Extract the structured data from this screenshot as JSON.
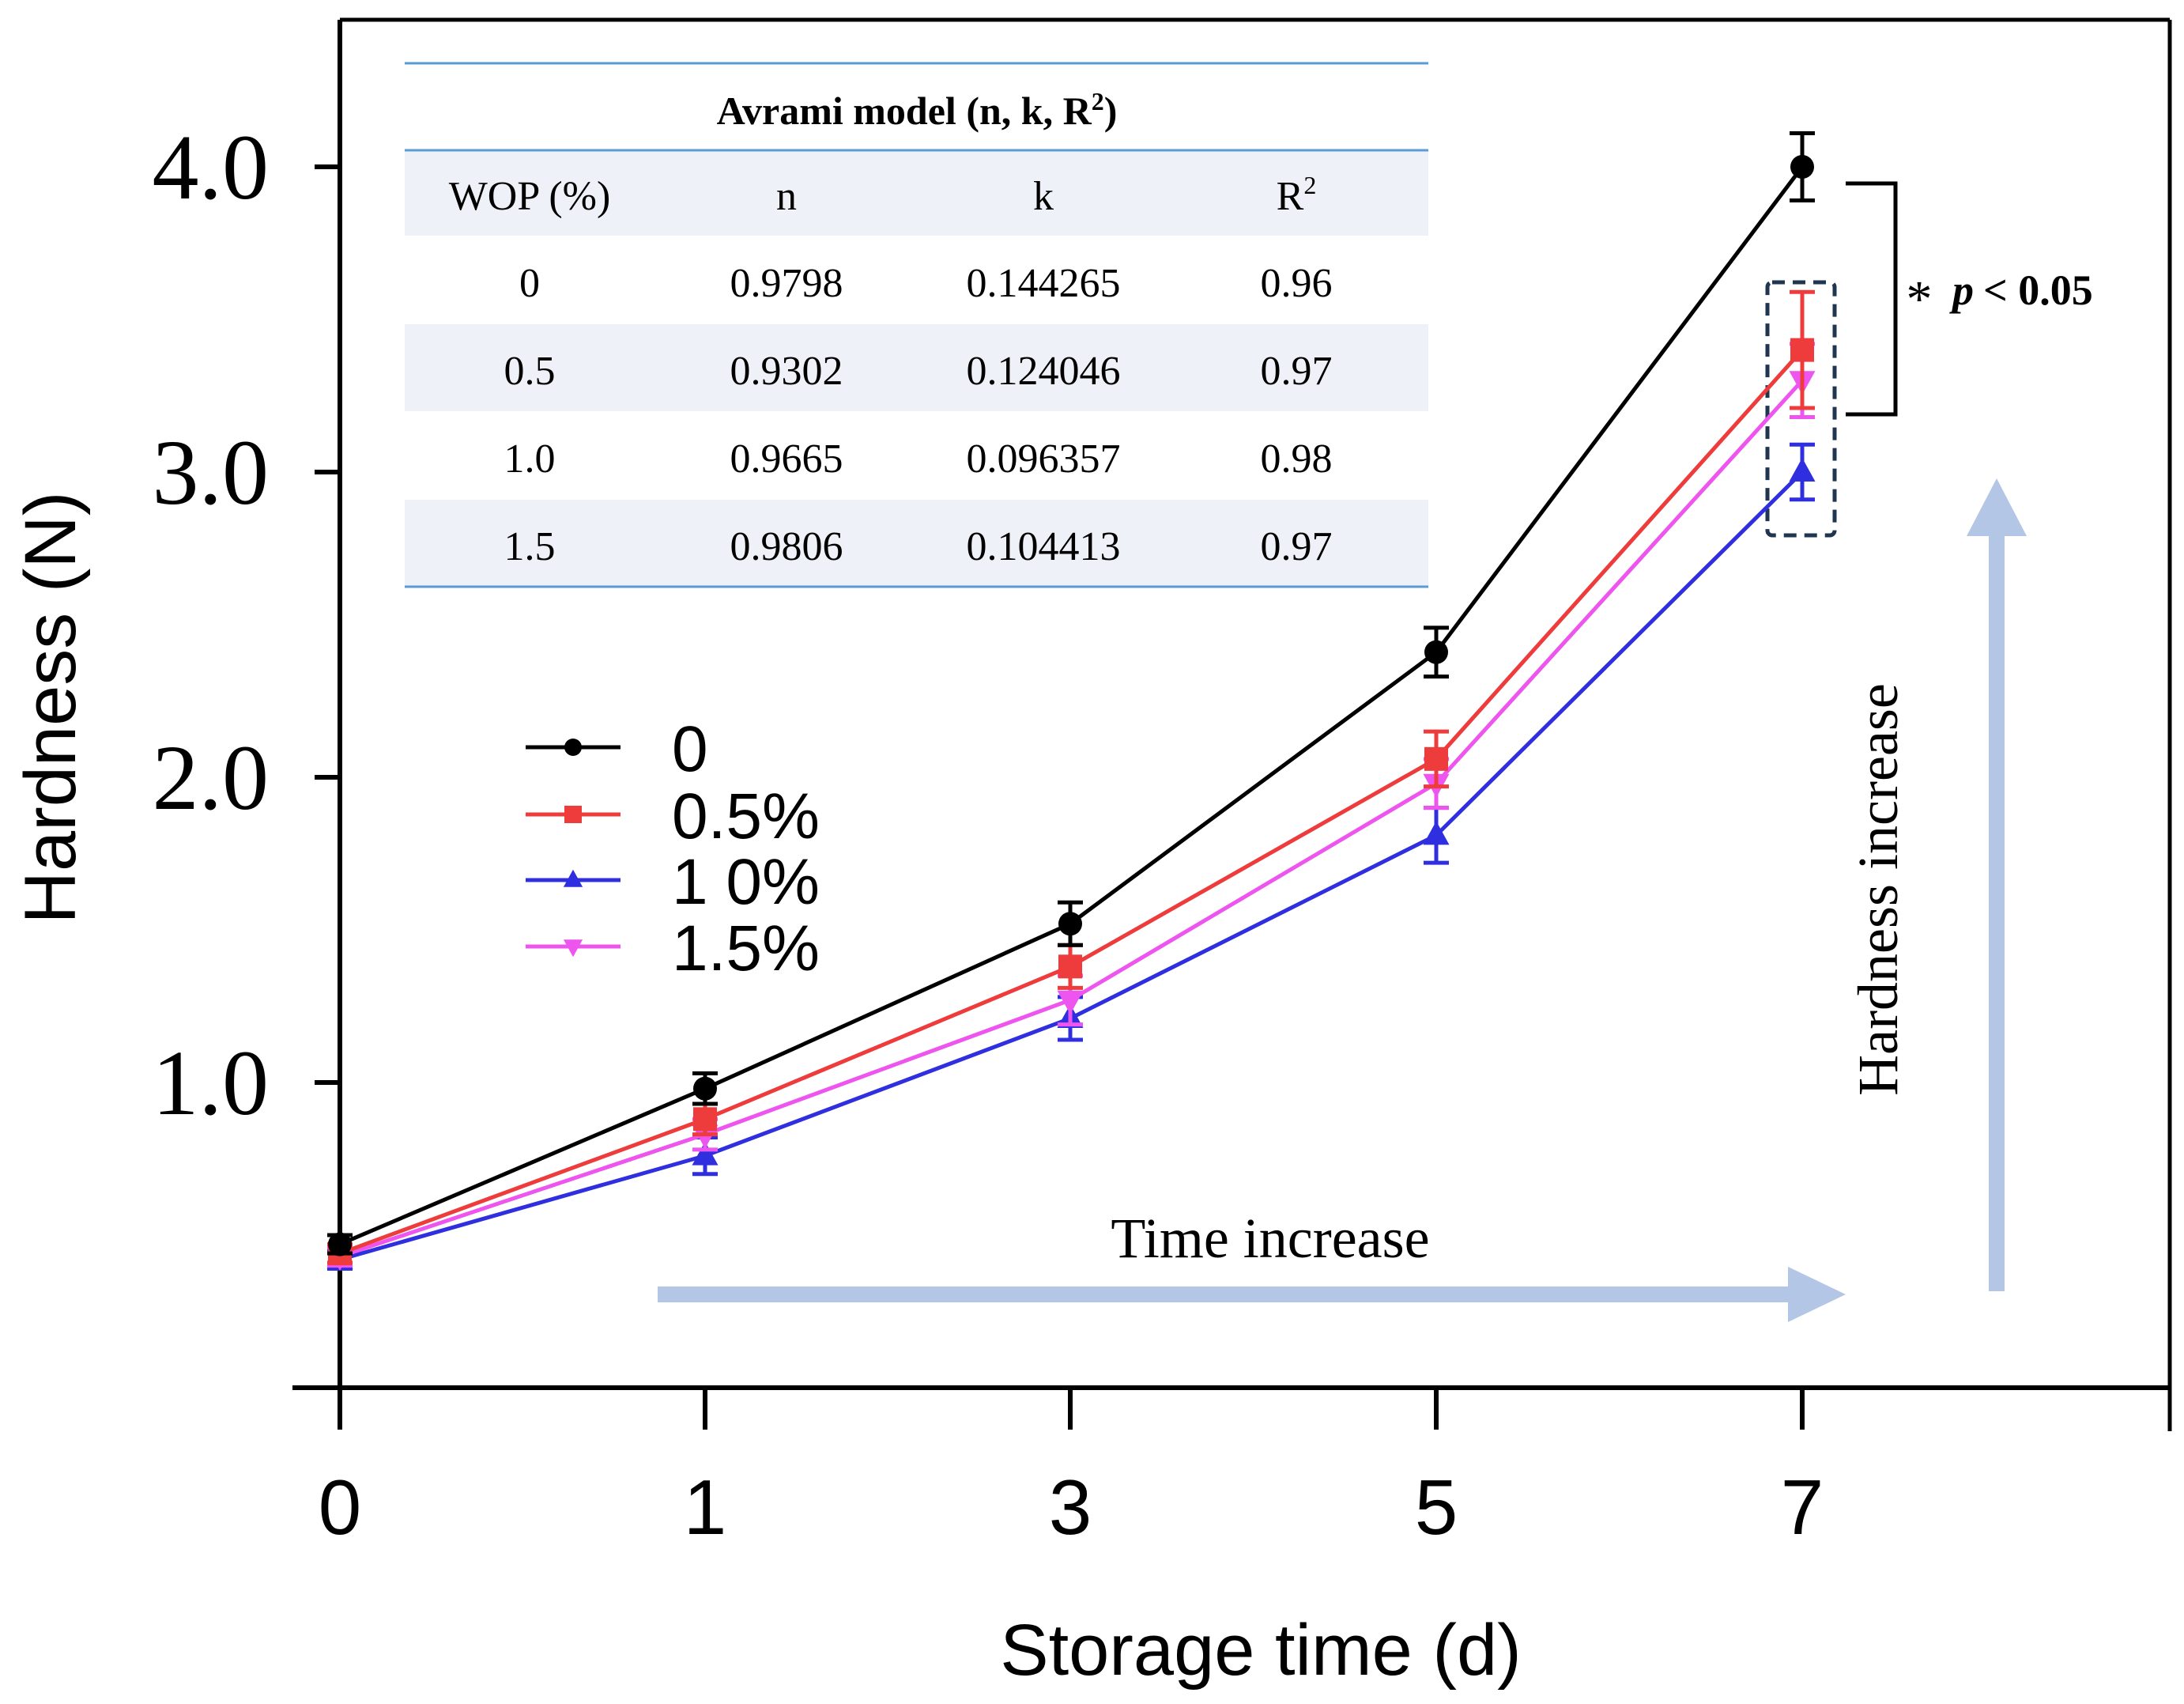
{
  "chart_data": {
    "type": "line",
    "xlabel": "Storage time (d)",
    "ylabel": "Hardness (N)",
    "x": [
      0,
      1,
      3,
      5,
      7
    ],
    "x_tick_labels": [
      "0",
      "1",
      "3",
      "5",
      "7"
    ],
    "y_ticks": [
      1.0,
      2.0,
      3.0,
      4.0
    ],
    "y_tick_labels": [
      "1.0",
      "2.0",
      "3.0",
      "4.0"
    ],
    "ylim": [
      0,
      4.45
    ],
    "x_axis_categorical": true,
    "grid": false,
    "legend_position": "left-center",
    "series": [
      {
        "name": "0",
        "color": "#000000",
        "marker": "circle",
        "values": [
          0.47,
          0.98,
          1.52,
          2.41,
          4.0
        ],
        "errors": [
          0.03,
          0.05,
          0.07,
          0.08,
          0.11
        ]
      },
      {
        "name": "0.5%",
        "color": "#ee3b3b",
        "marker": "square",
        "values": [
          0.44,
          0.88,
          1.38,
          2.06,
          3.4
        ],
        "errors": [
          0.03,
          0.05,
          0.07,
          0.09,
          0.19
        ]
      },
      {
        "name": "1 0%",
        "color": "#2f2fe0",
        "marker": "triangle-up",
        "values": [
          0.42,
          0.76,
          1.21,
          1.81,
          3.0
        ],
        "errors": [
          0.03,
          0.06,
          0.07,
          0.09,
          0.09
        ]
      },
      {
        "name": "1.5%",
        "color": "#ee55ee",
        "marker": "triangle-down",
        "values": [
          0.43,
          0.83,
          1.27,
          1.98,
          3.3
        ],
        "errors": [
          0.03,
          0.05,
          0.08,
          0.08,
          0.12
        ]
      }
    ],
    "annotations": {
      "time_arrow_label": "Time increase",
      "hardness_arrow_label": "Hardness increase",
      "significance_star": "*",
      "significance_p": "p",
      "significance_value": "< 0.05"
    },
    "inset_table": {
      "title_prefix": "Avrami model (n, k, R",
      "title_sup": "2",
      "title_suffix": ")",
      "headers": [
        "WOP (%)",
        "n",
        "k",
        "R"
      ],
      "header_sup": "2",
      "rows": [
        [
          "0",
          "0.9798",
          "0.144265",
          "0.96"
        ],
        [
          "0.5",
          "0.9302",
          "0.124046",
          "0.97"
        ],
        [
          "1.0",
          "0.9665",
          "0.096357",
          "0.98"
        ],
        [
          "1.5",
          "0.9806",
          "0.104413",
          "0.97"
        ]
      ]
    },
    "colors": {
      "axis": "#000000",
      "arrow": "#b3c6e6",
      "table_line": "#5b9bd5",
      "table_stripe": "#eef2f8",
      "dashed_box": "#1f3550"
    }
  }
}
